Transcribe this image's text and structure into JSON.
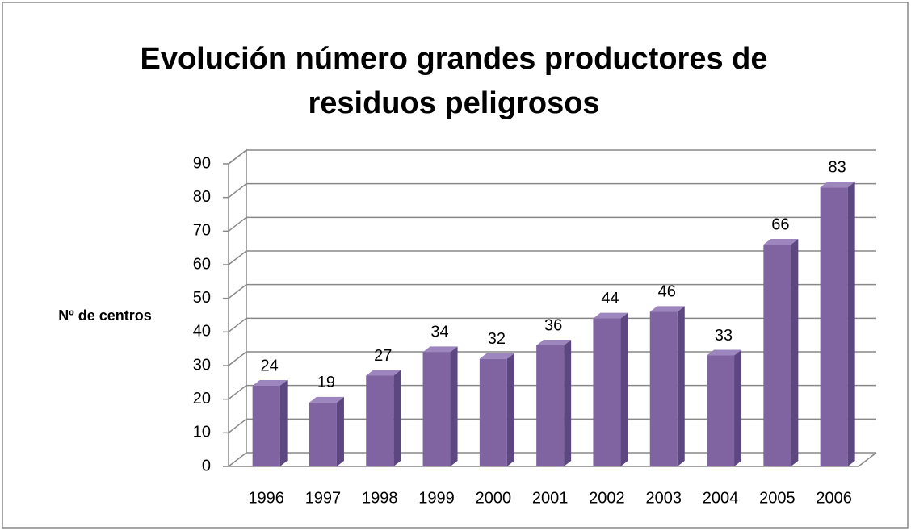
{
  "chart_data": {
    "type": "bar",
    "title": "Evolución número grandes productores de residuos peligrosos",
    "y_label": "Nº de centros",
    "categories": [
      "1996",
      "1997",
      "1998",
      "1999",
      "2000",
      "2001",
      "2002",
      "2003",
      "2004",
      "2005",
      "2006"
    ],
    "values": [
      24,
      19,
      27,
      34,
      32,
      36,
      44,
      46,
      33,
      66,
      83
    ],
    "color": "#8064a2",
    "ylim": [
      0,
      90
    ],
    "yticks": [
      0,
      10,
      20,
      30,
      40,
      50,
      60,
      70,
      80,
      90
    ],
    "grid": true
  }
}
